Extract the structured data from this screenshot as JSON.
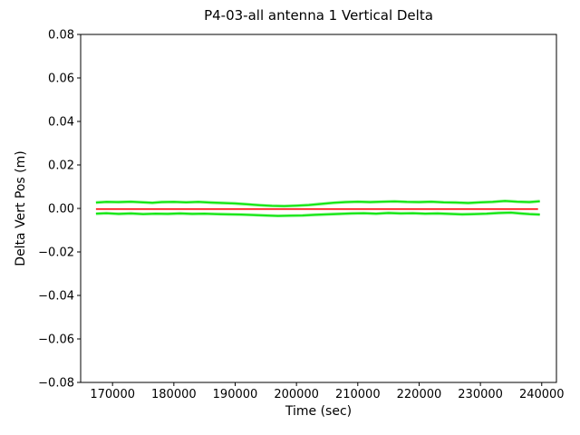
{
  "colors": {
    "green": "#00e400",
    "red": "#ff0000",
    "axis": "#000000",
    "background": "#ffffff",
    "text": "#000000"
  },
  "chart_data": {
    "type": "line",
    "title": "P4-03-all antenna 1 Vertical Delta",
    "xlabel": "Time (sec)",
    "ylabel": "Delta Vert Pos (m)",
    "xlim": [
      164800,
      242400
    ],
    "ylim": [
      -0.08,
      0.08
    ],
    "grid": false,
    "legend": null,
    "xticks": {
      "values": [
        170000,
        180000,
        190000,
        200000,
        210000,
        220000,
        230000,
        240000
      ],
      "labels": [
        "170000",
        "180000",
        "190000",
        "200000",
        "210000",
        "220000",
        "230000",
        "240000"
      ]
    },
    "yticks": {
      "values": [
        0.08,
        0.06,
        0.04,
        0.02,
        0.0,
        -0.02,
        -0.04,
        -0.06,
        -0.08
      ],
      "labels": [
        "0.08",
        "0.06",
        "0.04",
        "0.02",
        "0.00",
        "−0.02",
        "−0.04",
        "−0.06",
        "−0.08"
      ]
    },
    "series": [
      {
        "name": "antenna-1-upper-delta-trace",
        "color": "green",
        "approx_level": 0.003,
        "points": [
          [
            167300,
            0.0027
          ],
          [
            169000,
            0.003
          ],
          [
            171000,
            0.0029
          ],
          [
            173000,
            0.0031
          ],
          [
            175000,
            0.0028
          ],
          [
            176500,
            0.0026
          ],
          [
            178000,
            0.0029
          ],
          [
            180000,
            0.003
          ],
          [
            182000,
            0.0028
          ],
          [
            184000,
            0.003
          ],
          [
            186000,
            0.0027
          ],
          [
            188000,
            0.0025
          ],
          [
            190000,
            0.0023
          ],
          [
            192000,
            0.0019
          ],
          [
            194000,
            0.0015
          ],
          [
            196000,
            0.0012
          ],
          [
            198000,
            0.0011
          ],
          [
            200000,
            0.0013
          ],
          [
            202000,
            0.0016
          ],
          [
            204000,
            0.0021
          ],
          [
            206000,
            0.0026
          ],
          [
            208000,
            0.0029
          ],
          [
            210000,
            0.0031
          ],
          [
            212000,
            0.0029
          ],
          [
            214000,
            0.0031
          ],
          [
            216000,
            0.0032
          ],
          [
            218000,
            0.003
          ],
          [
            220000,
            0.0029
          ],
          [
            222000,
            0.0031
          ],
          [
            224000,
            0.0028
          ],
          [
            226000,
            0.0027
          ],
          [
            228000,
            0.0025
          ],
          [
            230000,
            0.0028
          ],
          [
            232000,
            0.003
          ],
          [
            234000,
            0.0034
          ],
          [
            236000,
            0.0031
          ],
          [
            238000,
            0.0029
          ],
          [
            239700,
            0.0033
          ]
        ]
      },
      {
        "name": "antenna-1-lower-delta-trace",
        "color": "green",
        "approx_level": -0.0025,
        "points": [
          [
            167300,
            -0.0024
          ],
          [
            169000,
            -0.0022
          ],
          [
            171000,
            -0.0025
          ],
          [
            173000,
            -0.0023
          ],
          [
            175000,
            -0.0026
          ],
          [
            177000,
            -0.0024
          ],
          [
            179000,
            -0.0025
          ],
          [
            181000,
            -0.0023
          ],
          [
            183000,
            -0.0025
          ],
          [
            185000,
            -0.0024
          ],
          [
            187000,
            -0.0026
          ],
          [
            189000,
            -0.0027
          ],
          [
            191000,
            -0.0028
          ],
          [
            193000,
            -0.003
          ],
          [
            195000,
            -0.0032
          ],
          [
            197000,
            -0.0034
          ],
          [
            199000,
            -0.0033
          ],
          [
            201000,
            -0.0032
          ],
          [
            203000,
            -0.0029
          ],
          [
            205000,
            -0.0027
          ],
          [
            207000,
            -0.0025
          ],
          [
            209000,
            -0.0023
          ],
          [
            211000,
            -0.0022
          ],
          [
            213000,
            -0.0024
          ],
          [
            215000,
            -0.0021
          ],
          [
            217000,
            -0.0023
          ],
          [
            219000,
            -0.0022
          ],
          [
            221000,
            -0.0024
          ],
          [
            223000,
            -0.0023
          ],
          [
            225000,
            -0.0025
          ],
          [
            227000,
            -0.0027
          ],
          [
            229000,
            -0.0026
          ],
          [
            231000,
            -0.0024
          ],
          [
            233000,
            -0.0021
          ],
          [
            235000,
            -0.0019
          ],
          [
            236500,
            -0.0023
          ],
          [
            238000,
            -0.0026
          ],
          [
            239700,
            -0.0028
          ]
        ]
      },
      {
        "name": "reference-zero-line",
        "color": "red",
        "approx_level": -0.0003,
        "points": [
          [
            167300,
            -0.0003
          ],
          [
            239400,
            -0.0003
          ]
        ]
      }
    ]
  }
}
